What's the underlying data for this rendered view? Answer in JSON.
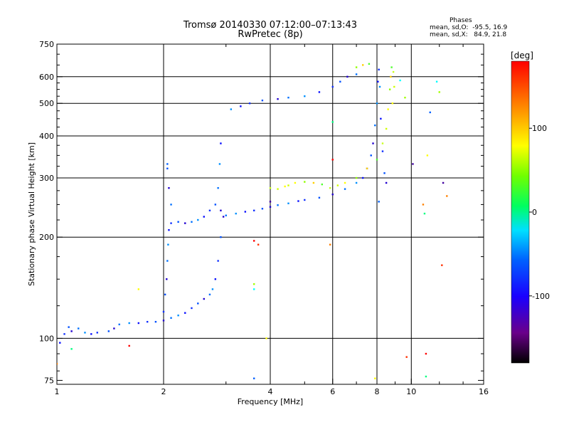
{
  "chart_data": {
    "type": "scatter",
    "title": "Tromsø 20140330 07:12:00–07:13:43",
    "subtitle": "RwPretec (8p)",
    "xlabel": "Frequency [MHz]",
    "ylabel": "Stationary phase Virtual Height [km]",
    "x_scale": "log2",
    "y_scale": "log",
    "xlim": [
      1,
      16
    ],
    "ylim": [
      73,
      750
    ],
    "x_ticks": [
      "1",
      "2",
      "4",
      "6",
      "8",
      "10",
      "16"
    ],
    "x_tick_values": [
      1,
      2,
      4,
      6,
      8,
      10,
      16
    ],
    "y_ticks": [
      "75",
      "100",
      "200",
      "300",
      "400",
      "500",
      "600",
      "750"
    ],
    "y_tick_values": [
      75,
      100,
      200,
      300,
      400,
      500,
      600,
      750
    ],
    "grid": true,
    "legend": {
      "heading": "Phases",
      "line1": "mean, sd,O:  -95.5, 16.9",
      "line2": "mean, sd,X:   84.9, 21.8"
    },
    "colorbar": {
      "label": "[deg]",
      "min": -180,
      "max": 180,
      "tick_values": [
        100,
        0,
        -100
      ],
      "tick_labels": [
        "100",
        "0",
        "-100"
      ]
    },
    "series": [
      {
        "mode": "O",
        "phase_mean": -95.5,
        "points": [
          [
            1.02,
            97
          ],
          [
            1.05,
            103
          ],
          [
            1.08,
            108
          ],
          [
            1.1,
            105
          ],
          [
            1.15,
            107
          ],
          [
            1.2,
            104
          ],
          [
            1.25,
            103
          ],
          [
            1.3,
            104
          ],
          [
            1.4,
            105
          ],
          [
            1.45,
            107
          ],
          [
            1.5,
            110
          ],
          [
            1.6,
            111
          ],
          [
            1.7,
            111
          ],
          [
            1.8,
            112
          ],
          [
            1.9,
            112
          ],
          [
            2.0,
            113
          ],
          [
            2.1,
            115
          ],
          [
            2.2,
            117
          ],
          [
            2.3,
            119
          ],
          [
            2.4,
            123
          ],
          [
            2.5,
            127
          ],
          [
            2.6,
            131
          ],
          [
            2.7,
            135
          ],
          [
            2.75,
            140
          ],
          [
            2.8,
            150
          ],
          [
            2.85,
            170
          ],
          [
            2.9,
            200
          ],
          [
            2.95,
            230
          ],
          [
            2.85,
            280
          ],
          [
            2.88,
            330
          ],
          [
            2.9,
            380
          ],
          [
            2.0,
            120
          ],
          [
            2.02,
            135
          ],
          [
            2.04,
            150
          ],
          [
            2.05,
            170
          ],
          [
            2.06,
            190
          ],
          [
            2.07,
            210
          ],
          [
            2.1,
            220
          ],
          [
            2.2,
            222
          ],
          [
            2.3,
            220
          ],
          [
            2.4,
            222
          ],
          [
            2.5,
            225
          ],
          [
            2.6,
            230
          ],
          [
            2.7,
            240
          ],
          [
            2.8,
            250
          ],
          [
            2.9,
            240
          ],
          [
            3.0,
            232
          ],
          [
            3.2,
            235
          ],
          [
            3.4,
            238
          ],
          [
            3.6,
            240
          ],
          [
            3.8,
            243
          ],
          [
            4.0,
            246
          ],
          [
            4.2,
            249
          ],
          [
            4.5,
            252
          ],
          [
            4.8,
            256
          ],
          [
            5.0,
            258
          ],
          [
            5.5,
            262
          ],
          [
            6.0,
            268
          ],
          [
            6.5,
            278
          ],
          [
            7.0,
            290
          ],
          [
            7.3,
            300
          ],
          [
            7.5,
            320
          ],
          [
            7.7,
            350
          ],
          [
            7.8,
            380
          ],
          [
            7.9,
            430
          ],
          [
            8.0,
            500
          ],
          [
            8.05,
            580
          ],
          [
            8.1,
            630
          ],
          [
            2.05,
            320
          ],
          [
            2.07,
            280
          ],
          [
            2.1,
            250
          ],
          [
            3.1,
            480
          ],
          [
            3.3,
            490
          ],
          [
            3.5,
            500
          ],
          [
            3.8,
            510
          ],
          [
            4.2,
            515
          ],
          [
            4.5,
            520
          ],
          [
            5.0,
            525
          ],
          [
            5.5,
            540
          ],
          [
            6.0,
            560
          ],
          [
            6.3,
            580
          ],
          [
            6.6,
            600
          ],
          [
            7.0,
            610
          ],
          [
            8.15,
            560
          ],
          [
            8.2,
            450
          ],
          [
            8.3,
            360
          ],
          [
            8.4,
            310
          ],
          [
            8.5,
            290
          ]
        ]
      },
      {
        "mode": "X",
        "phase_mean": 84.9,
        "points": [
          [
            4.5,
            285
          ],
          [
            4.7,
            290
          ],
          [
            5.0,
            292
          ],
          [
            5.3,
            290
          ],
          [
            5.6,
            287
          ],
          [
            5.9,
            280
          ],
          [
            6.2,
            285
          ],
          [
            6.5,
            290
          ],
          [
            7.0,
            300
          ],
          [
            7.5,
            320
          ],
          [
            8.0,
            340
          ],
          [
            8.3,
            380
          ],
          [
            8.5,
            420
          ],
          [
            8.6,
            480
          ],
          [
            8.7,
            550
          ],
          [
            8.75,
            600
          ],
          [
            8.8,
            640
          ],
          [
            8.9,
            620
          ],
          [
            8.95,
            560
          ],
          [
            8.85,
            500
          ],
          [
            7.0,
            640
          ],
          [
            7.3,
            650
          ],
          [
            7.6,
            655
          ],
          [
            4.0,
            280
          ],
          [
            4.2,
            278
          ],
          [
            4.4,
            283
          ]
        ]
      },
      {
        "mode": "noise",
        "points": [
          [
            1.0,
            84
          ],
          [
            1.1,
            93
          ],
          [
            1.6,
            95
          ],
          [
            1.7,
            140
          ],
          [
            2.05,
            330
          ],
          [
            3.6,
            140
          ],
          [
            3.6,
            145
          ],
          [
            3.7,
            190
          ],
          [
            4.0,
            255
          ],
          [
            5.9,
            190
          ],
          [
            6.0,
            440
          ],
          [
            6.0,
            340
          ],
          [
            7.9,
            76
          ],
          [
            8.1,
            255
          ],
          [
            9.3,
            585
          ],
          [
            9.6,
            520
          ],
          [
            9.7,
            88
          ],
          [
            10.1,
            330
          ],
          [
            10.8,
            250
          ],
          [
            10.9,
            235
          ],
          [
            11.0,
            90
          ],
          [
            11.1,
            350
          ],
          [
            11.3,
            470
          ],
          [
            11.8,
            580
          ],
          [
            12.0,
            540
          ],
          [
            12.2,
            165
          ],
          [
            12.3,
            290
          ],
          [
            12.6,
            265
          ],
          [
            11.0,
            77
          ],
          [
            3.6,
            195
          ],
          [
            3.9,
            100
          ],
          [
            3.6,
            76
          ]
        ]
      }
    ]
  }
}
